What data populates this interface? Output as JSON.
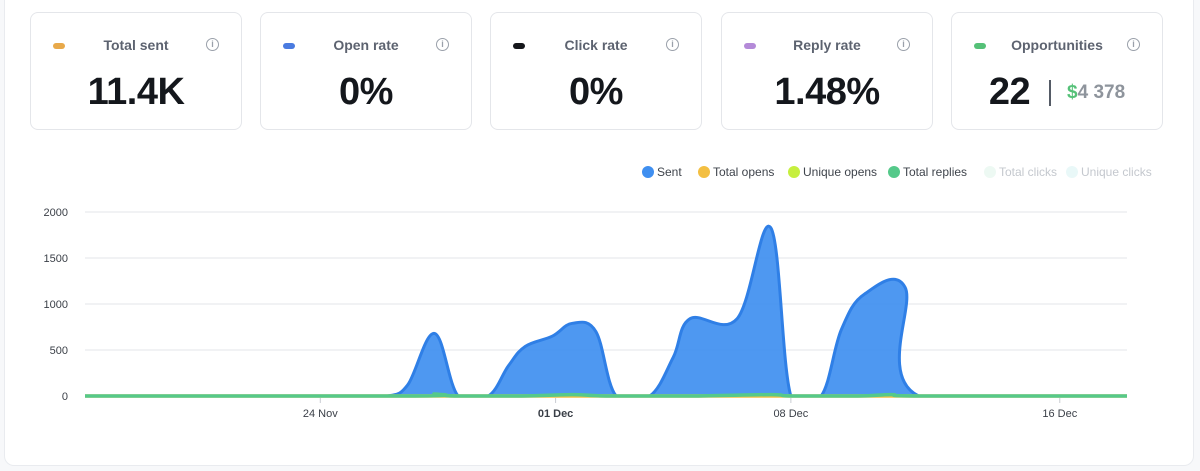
{
  "metrics": [
    {
      "label": "Total sent",
      "value": "11.4K",
      "color": "#e8a94a",
      "icon": "info-icon"
    },
    {
      "label": "Open rate",
      "value": "0%",
      "color": "#4a7be0",
      "icon": "info-icon"
    },
    {
      "label": "Click rate",
      "value": "0%",
      "color": "#15171b",
      "icon": "info-icon"
    },
    {
      "label": "Reply rate",
      "value": "1.48%",
      "color": "#b48ad8",
      "icon": "info-icon"
    },
    {
      "label": "Opportunities",
      "value": "22",
      "currency": "$",
      "amount": "4 378",
      "color": "#55c178",
      "icon": "info-icon"
    }
  ],
  "chart_data": {
    "type": "area",
    "title": "",
    "xlabel": "",
    "ylabel": "",
    "ylim": [
      0,
      2000
    ],
    "y_ticks": [
      0,
      500,
      1000,
      1500,
      2000
    ],
    "x_ticks": [
      {
        "day": 7,
        "label": "24 Nov",
        "bold": false
      },
      {
        "day": 14,
        "label": "01 Dec",
        "bold": true
      },
      {
        "day": 21,
        "label": "08 Dec",
        "bold": false
      },
      {
        "day": 29,
        "label": "16 Dec",
        "bold": false
      }
    ],
    "x_range": [
      0,
      31
    ],
    "legend_position": "top-right",
    "legend": [
      {
        "name": "Sent",
        "color": "#3f8ff0",
        "muted": false
      },
      {
        "name": "Total opens",
        "color": "#f3bf42",
        "muted": false
      },
      {
        "name": "Unique opens",
        "color": "#c6ef3e",
        "muted": false
      },
      {
        "name": "Total replies",
        "color": "#55c98a",
        "muted": false
      },
      {
        "name": "Total clicks",
        "color": "#edf9f3",
        "muted": true
      },
      {
        "name": "Unique clicks",
        "color": "#e9f8f8",
        "muted": true
      }
    ],
    "series": [
      {
        "name": "Sent",
        "color": "#3f8ff0",
        "points": [
          [
            0,
            0
          ],
          [
            1,
            0
          ],
          [
            2,
            0
          ],
          [
            3,
            0
          ],
          [
            4,
            0
          ],
          [
            5,
            0
          ],
          [
            6,
            0
          ],
          [
            7,
            0
          ],
          [
            8,
            0
          ],
          [
            9,
            0
          ],
          [
            9.6,
            120
          ],
          [
            10.4,
            680
          ],
          [
            11.1,
            0
          ],
          [
            12,
            0
          ],
          [
            12.6,
            330
          ],
          [
            13.1,
            540
          ],
          [
            13.9,
            650
          ],
          [
            14.5,
            790
          ],
          [
            15.2,
            700
          ],
          [
            15.8,
            0
          ],
          [
            16.8,
            0
          ],
          [
            17.5,
            420
          ],
          [
            18,
            840
          ],
          [
            19.4,
            840
          ],
          [
            20.4,
            1830
          ],
          [
            21,
            0
          ],
          [
            21.9,
            0
          ],
          [
            22.5,
            720
          ],
          [
            23.2,
            1110
          ],
          [
            24.4,
            1180
          ],
          [
            24.8,
            0
          ],
          [
            31,
            0
          ]
        ]
      },
      {
        "name": "Total opens",
        "color": "#f3bf42",
        "points": [
          [
            0,
            0
          ],
          [
            31,
            0
          ]
        ]
      },
      {
        "name": "Total replies",
        "color": "#55c98a",
        "points": [
          [
            0,
            0
          ],
          [
            9.8,
            0
          ],
          [
            10.4,
            22
          ],
          [
            11,
            0
          ],
          [
            13,
            0
          ],
          [
            14.5,
            15
          ],
          [
            15.5,
            0
          ],
          [
            18,
            0
          ],
          [
            20.4,
            15
          ],
          [
            21,
            0
          ],
          [
            23,
            0
          ],
          [
            24,
            15
          ],
          [
            24.8,
            0
          ],
          [
            31,
            0
          ]
        ]
      }
    ]
  }
}
